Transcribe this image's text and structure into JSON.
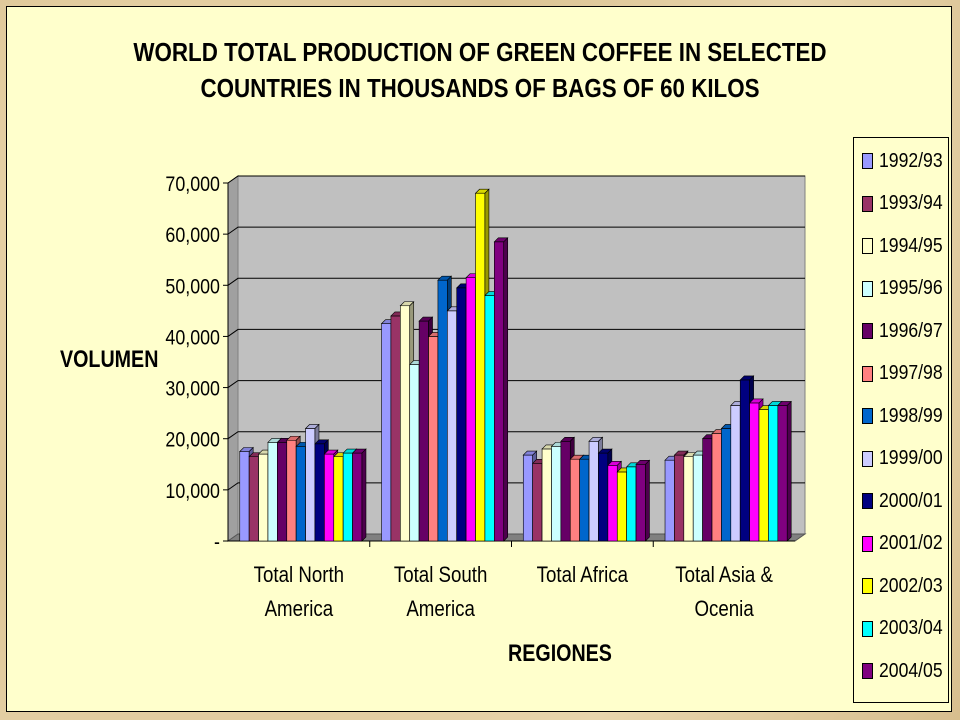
{
  "chart_data": {
    "type": "bar",
    "title_line1": "WORLD TOTAL PRODUCTION OF GREEN COFFEE IN SELECTED",
    "title_line2": "COUNTRIES IN THOUSANDS OF BAGS OF 60 KILOS",
    "xlabel": "REGIONES",
    "ylabel": "VOLUMEN",
    "ylim": [
      0,
      70000
    ],
    "yticks": [
      0,
      10000,
      20000,
      30000,
      40000,
      50000,
      60000,
      70000
    ],
    "ytick_labels": [
      "-",
      "10,000",
      "20,000",
      "30,000",
      "40,000",
      "50,000",
      "60,000",
      "70,000"
    ],
    "grid": true,
    "legend_position": "right",
    "categories": [
      [
        "Total North",
        "America"
      ],
      [
        "Total South",
        "America"
      ],
      [
        "Total Africa"
      ],
      [
        "Total Asia &",
        "Ocenia"
      ]
    ],
    "series": [
      {
        "name": "1992/93",
        "color": "#9999ff",
        "values": [
          17500,
          42500,
          16800,
          15800
        ]
      },
      {
        "name": "1993/94",
        "color": "#993366",
        "values": [
          16500,
          44000,
          15200,
          16800
        ]
      },
      {
        "name": "1994/95",
        "color": "#ffffcc",
        "values": [
          17000,
          46000,
          18000,
          16500
        ]
      },
      {
        "name": "1995/96",
        "color": "#ccffff",
        "values": [
          19300,
          34500,
          18500,
          16800
        ]
      },
      {
        "name": "1996/97",
        "color": "#660066",
        "values": [
          19300,
          43000,
          19500,
          20000
        ]
      },
      {
        "name": "1997/98",
        "color": "#ff8080",
        "values": [
          19700,
          40000,
          16000,
          21000
        ]
      },
      {
        "name": "1998/99",
        "color": "#0066cc",
        "values": [
          18500,
          51000,
          16000,
          22000
        ]
      },
      {
        "name": "1999/00",
        "color": "#ccccff",
        "values": [
          22000,
          45000,
          19500,
          26500
        ]
      },
      {
        "name": "2000/01",
        "color": "#000080",
        "values": [
          19000,
          49500,
          17200,
          31500
        ]
      },
      {
        "name": "2001/02",
        "color": "#ff00ff",
        "values": [
          17000,
          51500,
          14800,
          27000
        ]
      },
      {
        "name": "2002/03",
        "color": "#ffff00",
        "values": [
          16500,
          68000,
          13500,
          25700
        ]
      },
      {
        "name": "2003/04",
        "color": "#00ffff",
        "values": [
          17200,
          48000,
          14500,
          26500
        ]
      },
      {
        "name": "2004/05",
        "color": "#800080",
        "values": [
          17200,
          58500,
          15000,
          26500
        ]
      }
    ]
  },
  "colors": {
    "plot_background": "#c0c0c0",
    "panel_background": "#ffffcc",
    "floor": "#808080"
  }
}
